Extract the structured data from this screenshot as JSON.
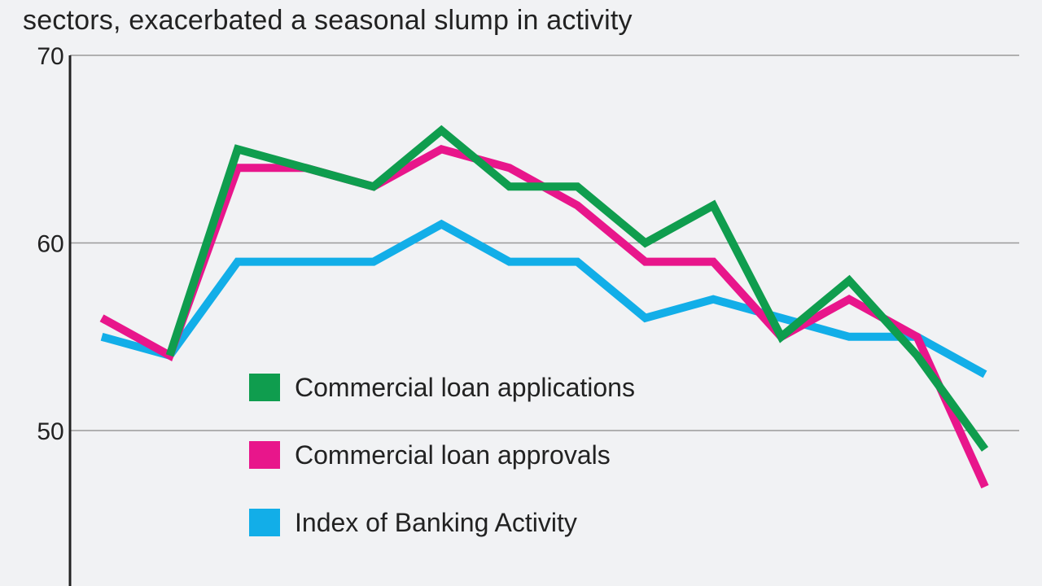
{
  "header": {
    "subtitle": "sectors, exacerbated a seasonal slump in activity"
  },
  "chart_data": {
    "type": "line",
    "title": "",
    "subtitle": "sectors, exacerbated a seasonal slump in activity",
    "xlabel": "",
    "ylabel": "",
    "ylim": [
      40,
      70
    ],
    "yticks": [
      50,
      60,
      70
    ],
    "grid": true,
    "legend_position": "center",
    "x": [
      1,
      2,
      3,
      4,
      5,
      6,
      7,
      8,
      9,
      10,
      11,
      12,
      13,
      14
    ],
    "series": [
      {
        "name": "Commercial loan applications",
        "color": "#0f9d4e",
        "values": [
          null,
          54,
          65,
          64,
          63,
          66,
          63,
          63,
          60,
          62,
          55,
          58,
          54,
          49
        ]
      },
      {
        "name": "Commercial loan approvals",
        "color": "#e8168b",
        "values": [
          56,
          54,
          64,
          64,
          63,
          65,
          64,
          62,
          59,
          59,
          55,
          57,
          55,
          47
        ]
      },
      {
        "name": "Index of Banking Activity",
        "color": "#12aee8",
        "values": [
          55,
          54,
          59,
          59,
          59,
          61,
          59,
          59,
          56,
          57,
          56,
          55,
          55,
          53
        ]
      }
    ]
  }
}
